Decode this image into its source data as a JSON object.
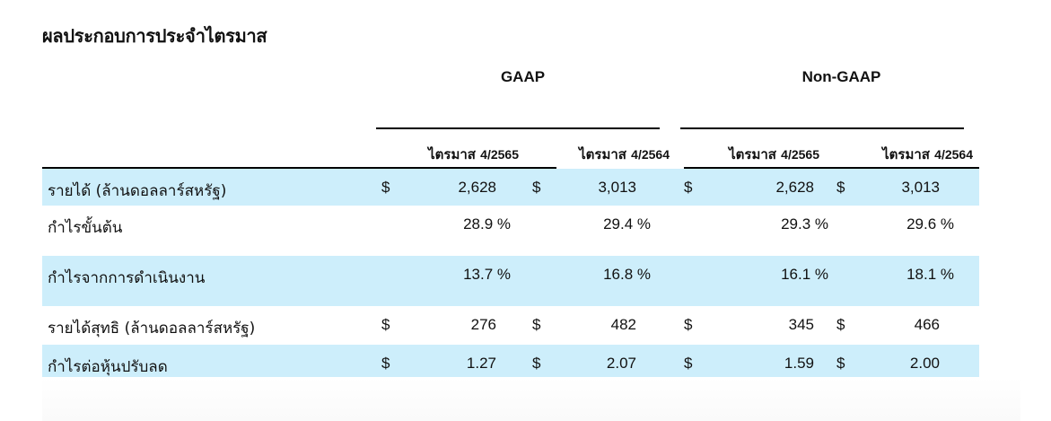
{
  "title": "ผลประกอบการประจำไตรมาส",
  "groups": {
    "gaap": "GAAP",
    "non_gaap": "Non-GAAP"
  },
  "columns": [
    {
      "label": "ไตรมาส",
      "period": "4/2565"
    },
    {
      "label": "ไตรมาส",
      "period": "4/2564"
    },
    {
      "label": "ไตรมาส",
      "period": "4/2565"
    },
    {
      "label": "ไตรมาส",
      "period": "4/2564"
    }
  ],
  "rows": [
    {
      "label": "รายได้ (ล้านดอลลาร์สหรัฐ)",
      "shaded": true,
      "cells": [
        {
          "cur": "$",
          "val": "2,628"
        },
        {
          "cur": "$",
          "val": "3,013"
        },
        {
          "cur": "$",
          "val": "2,628"
        },
        {
          "cur": "$",
          "val": "3,013"
        }
      ]
    },
    {
      "label": "กำไรขั้นต้น",
      "shaded": false,
      "cells": [
        {
          "cur": "",
          "val": "28.9 %"
        },
        {
          "cur": "",
          "val": "29.4 %"
        },
        {
          "cur": "",
          "val": "29.3 %"
        },
        {
          "cur": "",
          "val": "29.6 %"
        }
      ]
    },
    {
      "label": "กำไรจากการดำเนินงาน",
      "shaded": true,
      "cells": [
        {
          "cur": "",
          "val": "13.7 %"
        },
        {
          "cur": "",
          "val": "16.8 %"
        },
        {
          "cur": "",
          "val": "16.1 %"
        },
        {
          "cur": "",
          "val": "18.1 %"
        }
      ]
    },
    {
      "label": "รายได้สุทธิ (ล้านดอลลาร์สหรัฐ)",
      "shaded": false,
      "cells": [
        {
          "cur": "$",
          "val": "276"
        },
        {
          "cur": "$",
          "val": "482"
        },
        {
          "cur": "$",
          "val": "345"
        },
        {
          "cur": "$",
          "val": "466"
        }
      ]
    },
    {
      "label": "กำไรต่อหุ้นปรับลด",
      "shaded": true,
      "cells": [
        {
          "cur": "$",
          "val": "1.27"
        },
        {
          "cur": "$",
          "val": "2.07"
        },
        {
          "cur": "$",
          "val": "1.59"
        },
        {
          "cur": "$",
          "val": "2.00"
        }
      ]
    }
  ],
  "colors": {
    "row_shade": "#cdeefb",
    "rule": "#000000"
  }
}
